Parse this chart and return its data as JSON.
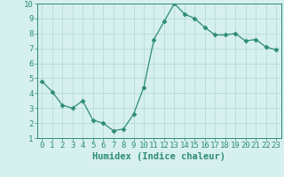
{
  "x": [
    0,
    1,
    2,
    3,
    4,
    5,
    6,
    7,
    8,
    9,
    10,
    11,
    12,
    13,
    14,
    15,
    16,
    17,
    18,
    19,
    20,
    21,
    22,
    23
  ],
  "y": [
    4.8,
    4.1,
    3.2,
    3.0,
    3.5,
    2.2,
    2.0,
    1.5,
    1.6,
    2.6,
    4.4,
    7.6,
    8.8,
    10.0,
    9.3,
    9.0,
    8.4,
    7.9,
    7.9,
    8.0,
    7.5,
    7.6,
    7.1,
    6.9
  ],
  "line_color": "#2d8b7a",
  "marker": "D",
  "marker_size": 2.5,
  "bg_color": "#d6f0ee",
  "grid_color": "#b0d8d4",
  "xlabel": "Humidex (Indice chaleur)",
  "xlim": [
    -0.5,
    23.5
  ],
  "ylim": [
    1,
    10
  ],
  "yticks": [
    1,
    2,
    3,
    4,
    5,
    6,
    7,
    8,
    9,
    10
  ],
  "xticks": [
    0,
    1,
    2,
    3,
    4,
    5,
    6,
    7,
    8,
    9,
    10,
    11,
    12,
    13,
    14,
    15,
    16,
    17,
    18,
    19,
    20,
    21,
    22,
    23
  ],
  "axis_color": "#2d8b7a",
  "tick_color": "#2d8b7a",
  "xlabel_fontsize": 7.5,
  "tick_fontsize": 6.5
}
